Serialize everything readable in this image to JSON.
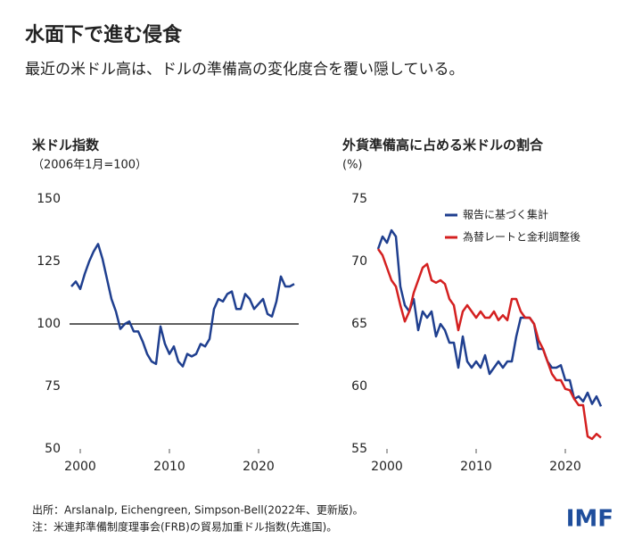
{
  "title": "水面下で進む侵食",
  "subtitle": "最近の米ドル高は、ドルの準備高の変化度合を覆い隠している。",
  "footnotes": [
    "出所：Arslanalp, Eichengreen, Simpson-Bell(2022年、更新版)。",
    "注：米連邦準備制度理事会(FRB)の貿易加重ドル指数(先進国)。"
  ],
  "logo": "IMF",
  "chart_data": [
    {
      "type": "line",
      "title": "米ドル指数",
      "subtitle": "（2006年1月=100）",
      "x": [
        1999,
        1999.5,
        2000,
        2000.5,
        2001,
        2001.5,
        2002,
        2002.5,
        2003,
        2003.5,
        2004,
        2004.5,
        2005,
        2005.5,
        2006,
        2006.5,
        2007,
        2007.5,
        2008,
        2008.5,
        2009,
        2009.5,
        2010,
        2010.5,
        2011,
        2011.5,
        2012,
        2012.5,
        2013,
        2013.5,
        2014,
        2014.5,
        2015,
        2015.5,
        2016,
        2016.5,
        2017,
        2017.5,
        2018,
        2018.5,
        2019,
        2019.5,
        2020,
        2020.5,
        2021,
        2021.5,
        2022,
        2022.5,
        2023,
        2023.5,
        2024
      ],
      "series": [
        {
          "color": "#1f3f8f",
          "values": [
            115,
            117,
            114,
            120,
            125,
            129,
            132,
            126,
            118,
            110,
            105,
            98,
            100,
            101,
            97,
            97,
            93,
            88,
            85,
            84,
            99,
            92,
            88,
            91,
            85,
            83,
            88,
            87,
            88,
            92,
            91,
            94,
            106,
            110,
            109,
            112,
            113,
            106,
            106,
            112,
            110,
            106,
            108,
            110,
            104,
            103,
            109,
            119,
            115,
            115,
            116
          ]
        }
      ],
      "reference_line": 100,
      "xlim": [
        1998.8,
        2024.5
      ],
      "xticks": [
        2000,
        2010,
        2020
      ],
      "ylim": [
        50,
        150
      ],
      "yticks": [
        50,
        75,
        100,
        125,
        150
      ]
    },
    {
      "type": "line",
      "title": "外貨準備高に占める米ドルの割合",
      "subtitle": "(%)",
      "x": [
        1999,
        1999.5,
        2000,
        2000.5,
        2001,
        2001.5,
        2002,
        2002.5,
        2003,
        2003.5,
        2004,
        2004.5,
        2005,
        2005.5,
        2006,
        2006.5,
        2007,
        2007.5,
        2008,
        2008.5,
        2009,
        2009.5,
        2010,
        2010.5,
        2011,
        2011.5,
        2012,
        2012.5,
        2013,
        2013.5,
        2014,
        2014.5,
        2015,
        2015.5,
        2016,
        2016.5,
        2017,
        2017.5,
        2018,
        2018.5,
        2019,
        2019.5,
        2020,
        2020.5,
        2021,
        2021.5,
        2022,
        2022.5,
        2023,
        2023.5,
        2024
      ],
      "series": [
        {
          "name": "報告に基づく集計",
          "color": "#1f3f8f",
          "values": [
            71,
            72,
            71.5,
            72.5,
            72,
            68,
            66.5,
            66,
            67,
            64.5,
            66,
            65.5,
            66,
            64,
            65,
            64.5,
            63.5,
            63.5,
            61.5,
            64,
            62,
            61.5,
            62,
            61.5,
            62.5,
            61,
            61.5,
            62,
            61.5,
            62,
            62,
            64,
            65.5,
            65.5,
            65.5,
            65,
            63,
            63,
            62,
            61.5,
            61.5,
            61.7,
            60.5,
            60.5,
            59,
            59.2,
            58.8,
            59.5,
            58.6,
            59.2,
            58.4
          ]
        },
        {
          "name": "為替レートと金利調整後",
          "color": "#d42020",
          "values": [
            71,
            70.5,
            69.5,
            68.5,
            68,
            66.5,
            65.2,
            66,
            67.5,
            68.5,
            69.5,
            69.8,
            68.5,
            68.3,
            68.5,
            68.2,
            67,
            66.5,
            64.5,
            66,
            66.5,
            66,
            65.5,
            66,
            65.5,
            65.5,
            66,
            65.3,
            65.7,
            65.3,
            67,
            67,
            66,
            65.5,
            65.5,
            65,
            63.7,
            63,
            62,
            61,
            60.5,
            60.5,
            59.8,
            59.7,
            59,
            58.5,
            58.5,
            56,
            55.8,
            56.2,
            55.9
          ]
        }
      ],
      "legend": "upper right",
      "xlim": [
        1998.8,
        2024.5
      ],
      "xticks": [
        2000,
        2010,
        2020
      ],
      "ylim": [
        55,
        75
      ],
      "yticks": [
        55,
        60,
        65,
        70,
        75
      ]
    }
  ]
}
